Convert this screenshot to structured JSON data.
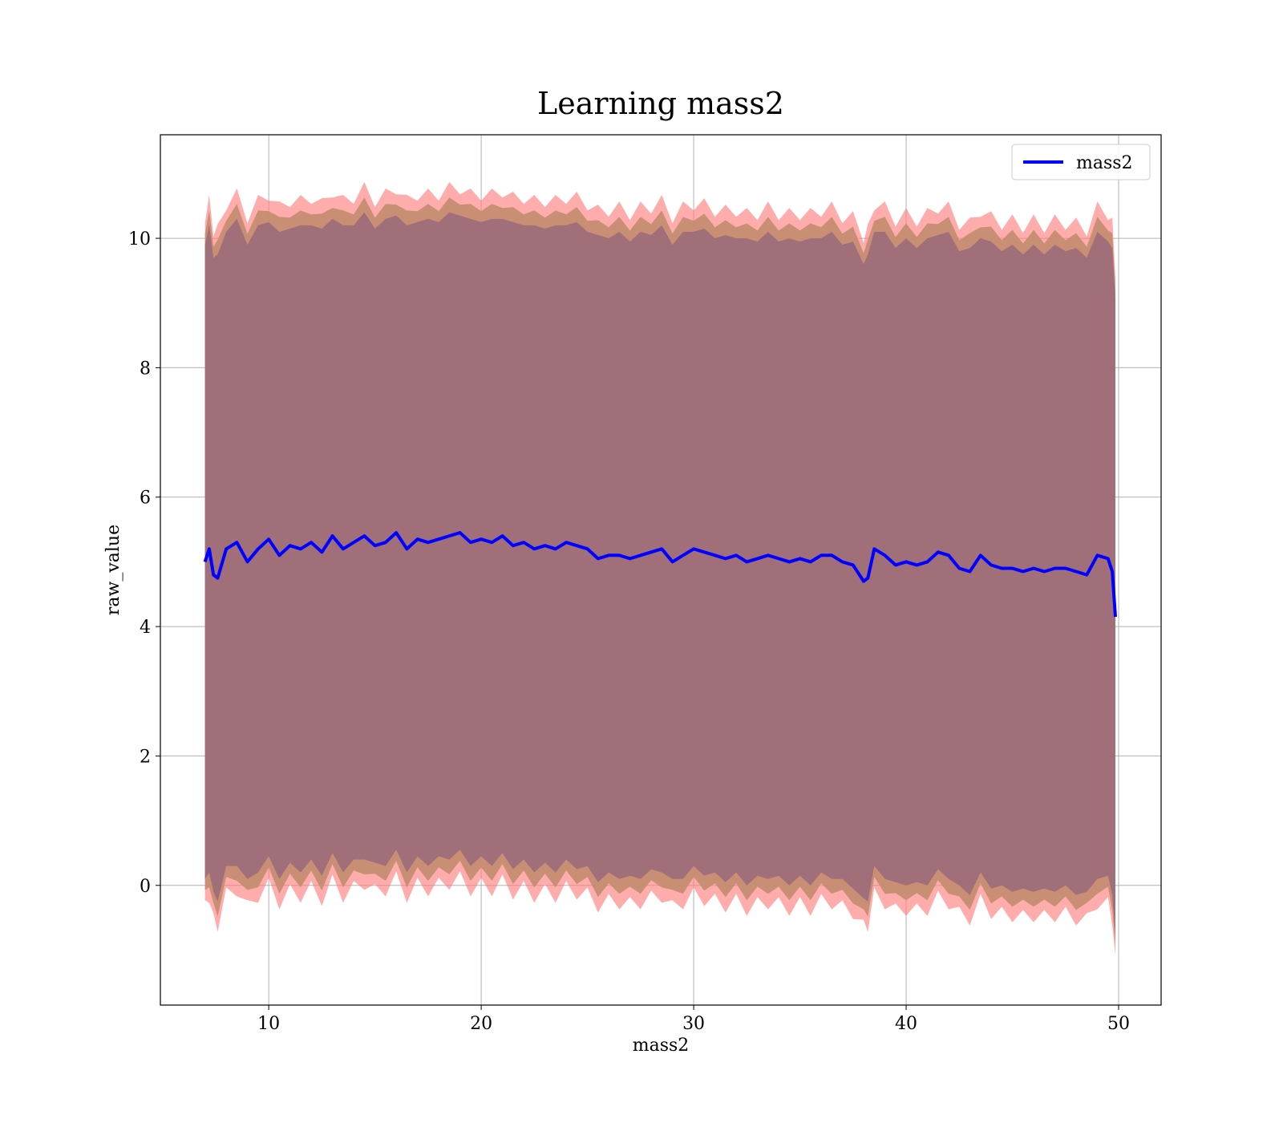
{
  "chart_data": {
    "type": "line",
    "title": "Learning mass2",
    "xlabel": "mass2",
    "ylabel": "raw_value",
    "xlim": [
      4.9,
      52.0
    ],
    "ylim": [
      -1.85,
      11.6
    ],
    "xticks": [
      10,
      20,
      30,
      40,
      50
    ],
    "yticks": [
      0,
      2,
      4,
      6,
      8,
      10
    ],
    "grid": true,
    "legend_position": "top-right",
    "series": [
      {
        "name": "mass2",
        "color": "#0000ff",
        "x": [
          7.0,
          7.2,
          7.4,
          7.6,
          8.0,
          8.5,
          9.0,
          9.5,
          10.0,
          10.5,
          11.0,
          11.5,
          12.0,
          12.5,
          13.0,
          13.5,
          14.0,
          14.5,
          15.0,
          15.5,
          16.0,
          16.5,
          17.0,
          17.5,
          18.0,
          18.5,
          19.0,
          19.5,
          20.0,
          20.5,
          21.0,
          21.5,
          22.0,
          22.5,
          23.0,
          23.5,
          24.0,
          24.5,
          25.0,
          25.5,
          26.0,
          26.5,
          27.0,
          27.5,
          28.0,
          28.5,
          29.0,
          29.5,
          30.0,
          30.5,
          31.0,
          31.5,
          32.0,
          32.5,
          33.0,
          33.5,
          34.0,
          34.5,
          35.0,
          35.5,
          36.0,
          36.5,
          37.0,
          37.5,
          38.0,
          38.2,
          38.5,
          39.0,
          39.5,
          40.0,
          40.5,
          41.0,
          41.5,
          42.0,
          42.5,
          43.0,
          43.5,
          44.0,
          44.5,
          45.0,
          45.5,
          46.0,
          46.5,
          47.0,
          47.5,
          48.0,
          48.5,
          49.0,
          49.5,
          49.7,
          49.85
        ],
        "values": [
          5.0,
          5.2,
          4.8,
          4.75,
          5.2,
          5.3,
          5.0,
          5.2,
          5.35,
          5.1,
          5.25,
          5.2,
          5.3,
          5.15,
          5.4,
          5.2,
          5.3,
          5.4,
          5.25,
          5.3,
          5.45,
          5.2,
          5.35,
          5.3,
          5.35,
          5.4,
          5.45,
          5.3,
          5.35,
          5.3,
          5.4,
          5.25,
          5.3,
          5.2,
          5.25,
          5.2,
          5.3,
          5.25,
          5.2,
          5.05,
          5.1,
          5.1,
          5.05,
          5.1,
          5.15,
          5.2,
          5.0,
          5.1,
          5.2,
          5.15,
          5.1,
          5.05,
          5.1,
          5.0,
          5.05,
          5.1,
          5.05,
          5.0,
          5.05,
          5.0,
          5.1,
          5.1,
          5.0,
          4.95,
          4.7,
          4.75,
          5.2,
          5.1,
          4.95,
          5.0,
          4.95,
          5.0,
          5.15,
          5.1,
          4.9,
          4.85,
          5.1,
          4.95,
          4.9,
          4.9,
          4.85,
          4.9,
          4.85,
          4.9,
          4.9,
          4.85,
          4.8,
          5.1,
          5.05,
          4.85,
          4.15
        ],
        "band_inner_halfwidth": 4.95,
        "band_outer_halfwidth": 5.35
      }
    ],
    "band_colors": {
      "outer": "#ff8080",
      "middle": "#c38c6e",
      "inner": "#a06f79"
    }
  }
}
